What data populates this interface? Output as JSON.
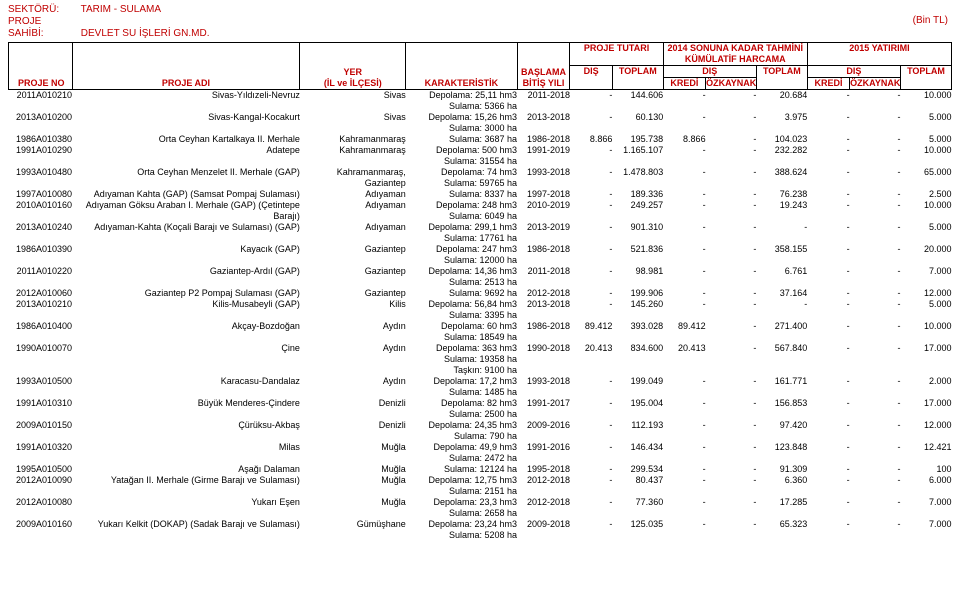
{
  "header": {
    "sector_label": "SEKTÖRÜ:",
    "sector_value": "TARIM - SULAMA",
    "owner_label": "PROJE SAHİBİ:",
    "owner_value": "DEVLET SU İŞLERİ GN.MD.",
    "unit": "(Bin TL)"
  },
  "colhdr": {
    "proje_no": "PROJE NO",
    "proje_adi": "PROJE ADI",
    "yer": "YER",
    "yer_sub": "(İL ve İLÇESİ)",
    "kar": "KARAKTERİSTİK",
    "baslama": "BAŞLAMA BİTİŞ YILI",
    "tutar": "PROJE TUTARI",
    "dis": "DIŞ",
    "toplam": "TOPLAM",
    "kumulatif_top": "2014 SONUNA KADAR TAHMİNİ KÜMÜLATİF HARCAMA",
    "kredi": "KREDİ",
    "ozkaynak": "ÖZKAYNAK",
    "yatirim": "2015 YATIRIMI"
  },
  "rows": [
    {
      "no": "2011A010210",
      "adi": "Sivas-Yıldızeli-Nevruz",
      "yer": "Sivas",
      "kar": "Depolama: 25,11 hm3\nSulama:    5366 ha",
      "yil": "2011-2018",
      "d1": "-",
      "t1": "144.606",
      "k1": "-",
      "o1": "-",
      "tt1": "20.684",
      "k2": "-",
      "o2": "-",
      "tt2": "10.000"
    },
    {
      "no": "2013A010200",
      "adi": "Sivas-Kangal-Kocakurt",
      "yer": "Sivas",
      "kar": "Depolama: 15,26 hm3\nSulama:    3000 ha",
      "yil": "2013-2018",
      "d1": "-",
      "t1": "60.130",
      "k1": "-",
      "o1": "-",
      "tt1": "3.975",
      "k2": "-",
      "o2": "-",
      "tt2": "5.000"
    },
    {
      "no": "1986A010380",
      "adi": "Orta Ceyhan Kartalkaya II. Merhale",
      "yer": "Kahramanmaraş",
      "kar": "Sulama:      3687 ha",
      "yil": "1986-2018",
      "d1": "8.866",
      "t1": "195.738",
      "k1": "8.866",
      "o1": "-",
      "tt1": "104.023",
      "k2": "-",
      "o2": "-",
      "tt2": "5.000"
    },
    {
      "no": "1991A010290",
      "adi": "Adatepe",
      "yer": "Kahramanmaraş",
      "kar": "Depolama:   500 hm3\nSulama:    31554 ha",
      "yil": "1991-2019",
      "d1": "-",
      "t1": "1.165.107",
      "k1": "-",
      "o1": "-",
      "tt1": "232.282",
      "k2": "-",
      "o2": "-",
      "tt2": "10.000"
    },
    {
      "no": "1993A010480",
      "adi": "Orta Ceyhan Menzelet II. Merhale (GAP)",
      "yer": "Kahramanmaraş, Gaziantep",
      "kar": "Depolama:     74 hm3\nSulama:    59765 ha",
      "yil": "1993-2018",
      "d1": "-",
      "t1": "1.478.803",
      "k1": "-",
      "o1": "-",
      "tt1": "388.624",
      "k2": "-",
      "o2": "-",
      "tt2": "65.000"
    },
    {
      "no": "1997A010080",
      "adi": "Adıyaman Kahta (GAP) (Samsat Pompaj Sulaması)",
      "yer": "Adıyaman",
      "kar": "Sulama:    8337 ha",
      "yil": "1997-2018",
      "d1": "-",
      "t1": "189.336",
      "k1": "-",
      "o1": "-",
      "tt1": "76.238",
      "k2": "-",
      "o2": "-",
      "tt2": "2.500"
    },
    {
      "no": "2010A010160",
      "adi": "Adıyaman Göksu Araban I. Merhale (GAP) (Çetintepe Barajı)",
      "yer": "Adıyaman",
      "kar": "Depolama: 248 hm3\nSulama:  6049 ha",
      "yil": "2010-2019",
      "d1": "-",
      "t1": "249.257",
      "k1": "-",
      "o1": "-",
      "tt1": "19.243",
      "k2": "-",
      "o2": "-",
      "tt2": "10.000"
    },
    {
      "no": "2013A010240",
      "adi": "Adıyaman-Kahta (Koçali Barajı ve Sulaması) (GAP)",
      "yer": "Adıyaman",
      "kar": "Depolama: 299,1 hm3\nSulama:  17761 ha",
      "yil": "2013-2019",
      "d1": "-",
      "t1": "901.310",
      "k1": "-",
      "o1": "-",
      "tt1": "-",
      "k2": "-",
      "o2": "-",
      "tt2": "5.000"
    },
    {
      "no": "1986A010390",
      "adi": "Kayacık (GAP)",
      "yer": "Gaziantep",
      "kar": "Depolama:  247 hm3\nSulama:   12000 ha",
      "yil": "1986-2018",
      "d1": "-",
      "t1": "521.836",
      "k1": "-",
      "o1": "-",
      "tt1": "358.155",
      "k2": "-",
      "o2": "-",
      "tt2": "20.000"
    },
    {
      "no": "2011A010220",
      "adi": "Gaziantep-Ardıl (GAP)",
      "yer": "Gaziantep",
      "kar": "Depolama: 14,36 hm3\nSulama:    2513 ha",
      "yil": "2011-2018",
      "d1": "-",
      "t1": "98.981",
      "k1": "-",
      "o1": "-",
      "tt1": "6.761",
      "k2": "-",
      "o2": "-",
      "tt2": "7.000"
    },
    {
      "no": "2012A010060",
      "adi": "Gaziantep P2 Pompaj Sulaması (GAP)",
      "yer": "Gaziantep",
      "kar": "Sulama:    9692 ha",
      "yil": "2012-2018",
      "d1": "-",
      "t1": "199.906",
      "k1": "-",
      "o1": "-",
      "tt1": "37.164",
      "k2": "-",
      "o2": "-",
      "tt2": "12.000"
    },
    {
      "no": "2013A010210",
      "adi": "Kilis-Musabeyli (GAP)",
      "yer": "Kilis",
      "kar": "Depolama: 56,84 hm3\nSulama:    3395 ha",
      "yil": "2013-2018",
      "d1": "-",
      "t1": "145.260",
      "k1": "-",
      "o1": "-",
      "tt1": "-",
      "k2": "-",
      "o2": "-",
      "tt2": "5.000"
    },
    {
      "no": "1986A010400",
      "adi": "Akçay-Bozdoğan",
      "yer": "Aydın",
      "kar": "Depolama:    60 hm3\nSulama:   18549 ha",
      "yil": "1986-2018",
      "d1": "89.412",
      "t1": "393.028",
      "k1": "89.412",
      "o1": "-",
      "tt1": "271.400",
      "k2": "-",
      "o2": "-",
      "tt2": "10.000"
    },
    {
      "no": "1990A010070",
      "adi": "Çine",
      "yer": "Aydın",
      "kar": "Depolama:   363 hm3\nSulama:   19358 ha\nTaşkın:     9100 ha",
      "yil": "1990-2018",
      "d1": "20.413",
      "t1": "834.600",
      "k1": "20.413",
      "o1": "-",
      "tt1": "567.840",
      "k2": "-",
      "o2": "-",
      "tt2": "17.000"
    },
    {
      "no": "1993A010500",
      "adi": "Karacasu-Dandalaz",
      "yer": "Aydın",
      "kar": "Depolama:   17,2 hm3\nSulama:    1485 ha",
      "yil": "1993-2018",
      "d1": "-",
      "t1": "199.049",
      "k1": "-",
      "o1": "-",
      "tt1": "161.771",
      "k2": "-",
      "o2": "-",
      "tt2": "2.000"
    },
    {
      "no": "1991A010310",
      "adi": "Büyük Menderes-Çindere",
      "yer": "Denizli",
      "kar": "Depolama:    82 hm3\nSulama:    2500 ha",
      "yil": "1991-2017",
      "d1": "-",
      "t1": "195.004",
      "k1": "-",
      "o1": "-",
      "tt1": "156.853",
      "k2": "-",
      "o2": "-",
      "tt2": "17.000"
    },
    {
      "no": "2009A010150",
      "adi": "Çürüksu-Akbaş",
      "yer": "Denizli",
      "kar": "Depolama: 24,35 hm3\nSulama:     790 ha",
      "yil": "2009-2016",
      "d1": "-",
      "t1": "112.193",
      "k1": "-",
      "o1": "-",
      "tt1": "97.420",
      "k2": "-",
      "o2": "-",
      "tt2": "12.000"
    },
    {
      "no": "1991A010320",
      "adi": "Milas",
      "yer": "Muğla",
      "kar": "Depolama: 49,9 hm3\nSulama:    2472 ha",
      "yil": "1991-2016",
      "d1": "-",
      "t1": "146.434",
      "k1": "-",
      "o1": "-",
      "tt1": "123.848",
      "k2": "-",
      "o2": "-",
      "tt2": "12.421"
    },
    {
      "no": "1995A010500",
      "adi": "Aşağı Dalaman",
      "yer": "Muğla",
      "kar": "Sulama:   12124 ha",
      "yil": "1995-2018",
      "d1": "-",
      "t1": "299.534",
      "k1": "-",
      "o1": "-",
      "tt1": "91.309",
      "k2": "-",
      "o2": "-",
      "tt2": "100"
    },
    {
      "no": "2012A010090",
      "adi": "Yatağan II. Merhale (Girme Barajı ve Sulaması)",
      "yer": "Muğla",
      "kar": "Depolama:  12,75 hm3\nSulama:    2151 ha",
      "yil": "2012-2018",
      "d1": "-",
      "t1": "80.437",
      "k1": "-",
      "o1": "-",
      "tt1": "6.360",
      "k2": "-",
      "o2": "-",
      "tt2": "6.000"
    },
    {
      "no": "2012A010080",
      "adi": "Yukarı Eşen",
      "yer": "Muğla",
      "kar": "Depolama:  23,3 hm3\nSulama:    2658 ha",
      "yil": "2012-2018",
      "d1": "-",
      "t1": "77.360",
      "k1": "-",
      "o1": "-",
      "tt1": "17.285",
      "k2": "-",
      "o2": "-",
      "tt2": "7.000"
    },
    {
      "no": "2009A010160",
      "adi": "Yukarı Kelkit (DOKAP) (Sadak Barajı ve Sulaması)",
      "yer": "Gümüşhane",
      "kar": "Depolama:  23,24 hm3\nSulama:    5208 ha",
      "yil": "2009-2018",
      "d1": "-",
      "t1": "125.035",
      "k1": "-",
      "o1": "-",
      "tt1": "65.323",
      "k2": "-",
      "o2": "-",
      "tt2": "7.000"
    }
  ]
}
